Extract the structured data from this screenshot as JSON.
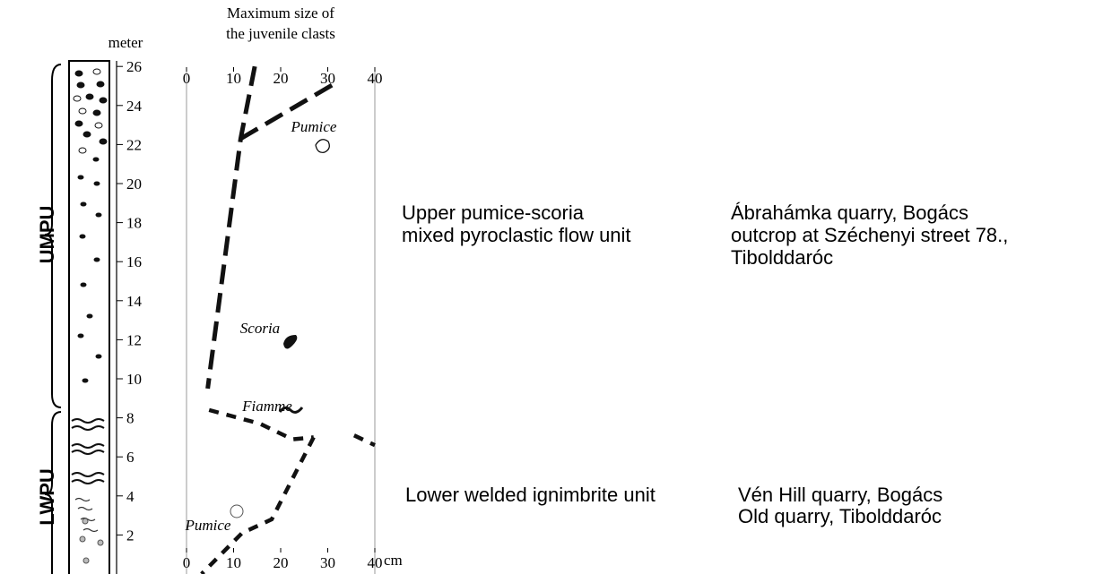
{
  "axis_title": [
    "Maximum size of",
    "the juvenile clasts"
  ],
  "depth_unit": "meter",
  "size_unit": "cm",
  "depth_ticks": [
    2,
    4,
    6,
    8,
    10,
    12,
    14,
    16,
    18,
    20,
    22,
    24,
    26
  ],
  "size_ticks_top": [
    0,
    10,
    20,
    30,
    40
  ],
  "size_ticks_bottom": [
    0,
    10,
    20,
    30,
    40
  ],
  "units": [
    {
      "label": "UMPU",
      "description": [
        "Upper pumice-scoria",
        "mixed pyroclastic flow unit"
      ],
      "localities": [
        "Ábrahámka quarry, Bogács",
        "outcrop at Széchenyi street 78.,",
        "Tibolddaróc"
      ]
    },
    {
      "label": "LWPU",
      "description": [
        "Lower welded ignimbrite unit"
      ],
      "localities": [
        "Vén Hill quarry, Bogács",
        "Old quarry, Tibolddaróc"
      ]
    }
  ],
  "annotations": [
    "Pumice",
    "Scoria",
    "Fiamme",
    "Pumice"
  ],
  "profiles": [
    {
      "x": [
        14.5,
        11.5,
        4.5
      ],
      "y": [
        26,
        22.3,
        9.5
      ]
    },
    {
      "x": [
        11.5,
        32
      ],
      "y": [
        22.3,
        25.2
      ]
    },
    {
      "x": [
        4.8,
        15.6,
        22.5,
        27,
        null,
        35.6,
        40
      ],
      "y": [
        8.4,
        7.7,
        6.9,
        7.0,
        null,
        7.1,
        6.6
      ]
    },
    {
      "x": [
        27,
        18.1,
        11.8,
        3.2
      ],
      "y": [
        7.0,
        2.8,
        2.1,
        0
      ]
    }
  ]
}
